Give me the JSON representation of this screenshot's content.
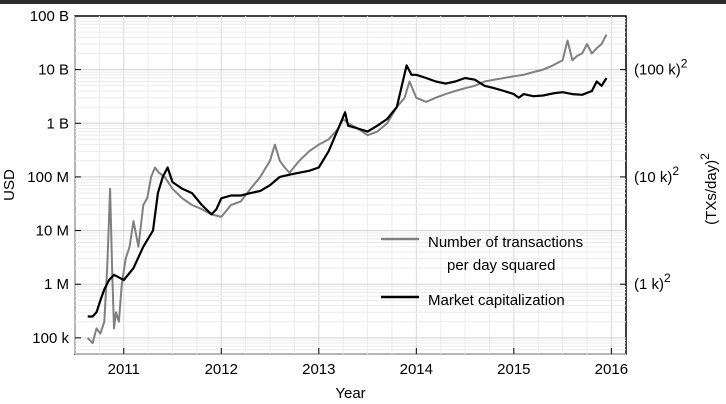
{
  "chart_data": {
    "type": "line",
    "xlabel": "Year",
    "ylabel": "USD",
    "ylabel_right": "(TXs/day)",
    "ylabel_right_exponent": "2",
    "xlim": [
      2010.5,
      2016.15
    ],
    "y_scale": "log",
    "ylim": [
      50000,
      100000000000
    ],
    "x_ticks": [
      2011,
      2012,
      2013,
      2014,
      2015,
      2016
    ],
    "x_tick_labels": [
      "2011",
      "2012",
      "2013",
      "2014",
      "2015",
      "2016"
    ],
    "y_ticks": [
      100000,
      1000000,
      10000000,
      100000000,
      1000000000,
      10000000000,
      100000000000
    ],
    "y_tick_labels": [
      "100 k",
      "1 M",
      "10 M",
      "100 M",
      "1 B",
      "10 B",
      "100 B"
    ],
    "y2_ticks": [
      {
        "value": 1000000,
        "label": "(1 k)",
        "exponent": "2"
      },
      {
        "value": 100000000,
        "label": "(10 k)",
        "exponent": "2"
      },
      {
        "value": 10000000000,
        "label": "(100 k)",
        "exponent": "2"
      }
    ],
    "grid": true,
    "legend": "center-right",
    "series": [
      {
        "name": "Number of transactions per day squared",
        "name_lines": [
          "Number of transactions",
          "per day squared"
        ],
        "color": "#808080",
        "x": [
          2010.63,
          2010.68,
          2010.72,
          2010.76,
          2010.8,
          2010.83,
          2010.86,
          2010.88,
          2010.9,
          2010.92,
          2010.95,
          2010.98,
          2011.02,
          2011.06,
          2011.1,
          2011.15,
          2011.2,
          2011.24,
          2011.28,
          2011.32,
          2011.36,
          2011.42,
          2011.5,
          2011.6,
          2011.7,
          2011.8,
          2011.9,
          2012.0,
          2012.1,
          2012.2,
          2012.3,
          2012.4,
          2012.5,
          2012.55,
          2012.6,
          2012.65,
          2012.7,
          2012.8,
          2012.9,
          2013.0,
          2013.1,
          2013.2,
          2013.25,
          2013.3,
          2013.4,
          2013.5,
          2013.6,
          2013.7,
          2013.8,
          2013.88,
          2013.93,
          2014.0,
          2014.1,
          2014.2,
          2014.3,
          2014.4,
          2014.5,
          2014.6,
          2014.7,
          2014.8,
          2014.9,
          2015.0,
          2015.1,
          2015.2,
          2015.3,
          2015.4,
          2015.5,
          2015.55,
          2015.6,
          2015.65,
          2015.7,
          2015.75,
          2015.8,
          2015.85,
          2015.9,
          2015.95
        ],
        "y": [
          100000,
          80000,
          150000,
          120000,
          200000,
          2000000,
          60000000,
          2000000,
          150000,
          300000,
          200000,
          1000000,
          3000000,
          5000000,
          15000000,
          5000000,
          30000000,
          40000000,
          100000000,
          150000000,
          120000000,
          100000000,
          60000000,
          40000000,
          30000000,
          25000000,
          20000000,
          18000000,
          30000000,
          35000000,
          60000000,
          100000000,
          200000000,
          400000000,
          200000000,
          150000000,
          120000000,
          200000000,
          300000000,
          400000000,
          500000000,
          800000000,
          1200000000,
          1000000000,
          800000000,
          600000000,
          700000000,
          1000000000,
          2000000000,
          3000000000,
          6000000000,
          3000000000,
          2500000000,
          3000000000,
          3500000000,
          4000000000,
          4500000000,
          5000000000,
          6000000000,
          6500000000,
          7000000000,
          7500000000,
          8000000000,
          9000000000,
          10000000000,
          12000000000,
          15000000000,
          35000000000,
          15000000000,
          18000000000,
          20000000000,
          30000000000,
          20000000000,
          25000000000,
          30000000000,
          45000000000
        ]
      },
      {
        "name": "Market capitalization",
        "name_lines": [
          "Market capitalization"
        ],
        "color": "#000000",
        "x": [
          2010.63,
          2010.68,
          2010.72,
          2010.76,
          2010.8,
          2010.85,
          2010.9,
          2011.0,
          2011.1,
          2011.2,
          2011.3,
          2011.35,
          2011.4,
          2011.45,
          2011.5,
          2011.6,
          2011.7,
          2011.8,
          2011.9,
          2011.95,
          2012.0,
          2012.1,
          2012.2,
          2012.3,
          2012.4,
          2012.5,
          2012.6,
          2012.7,
          2012.8,
          2012.9,
          2013.0,
          2013.1,
          2013.2,
          2013.27,
          2013.3,
          2013.4,
          2013.5,
          2013.6,
          2013.7,
          2013.8,
          2013.9,
          2013.95,
          2014.0,
          2014.1,
          2014.2,
          2014.3,
          2014.4,
          2014.5,
          2014.6,
          2014.7,
          2014.8,
          2014.9,
          2015.0,
          2015.05,
          2015.1,
          2015.2,
          2015.3,
          2015.4,
          2015.5,
          2015.6,
          2015.7,
          2015.8,
          2015.85,
          2015.9,
          2015.95
        ],
        "y": [
          250000,
          250000,
          300000,
          500000,
          800000,
          1200000,
          1500000,
          1200000,
          2000000,
          5000000,
          10000000,
          50000000,
          100000000,
          150000000,
          80000000,
          60000000,
          50000000,
          30000000,
          20000000,
          25000000,
          40000000,
          45000000,
          45000000,
          50000000,
          55000000,
          70000000,
          100000000,
          110000000,
          120000000,
          130000000,
          150000000,
          300000000,
          800000000,
          1600000000,
          900000000,
          800000000,
          700000000,
          900000000,
          1200000000,
          2000000000,
          12000000000,
          8000000000,
          8000000000,
          7000000000,
          6000000000,
          5500000000,
          6000000000,
          7000000000,
          6500000000,
          5000000000,
          4500000000,
          4000000000,
          3500000000,
          3000000000,
          3500000000,
          3200000000,
          3300000000,
          3600000000,
          3800000000,
          3500000000,
          3400000000,
          4000000000,
          6000000000,
          5000000000,
          7000000000
        ]
      }
    ]
  }
}
